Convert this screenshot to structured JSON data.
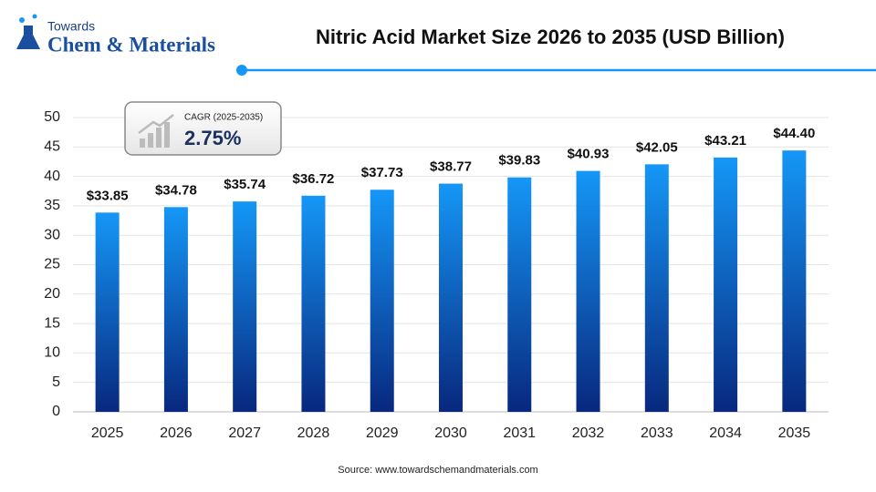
{
  "logo": {
    "top": "Towards",
    "bottom": "Chem & Materials"
  },
  "cagr": {
    "label": "CAGR (2025-2035)",
    "value": "2.75%"
  },
  "source": "Source: www.towardschemandmaterials.com",
  "chart_data": {
    "type": "bar",
    "title": "Nitric Acid Market Size 2026 to 2035 (USD Billion)",
    "categories": [
      "2025",
      "2026",
      "2027",
      "2028",
      "2029",
      "2030",
      "2031",
      "2032",
      "2033",
      "2034",
      "2035"
    ],
    "values": [
      33.85,
      34.78,
      35.74,
      36.72,
      37.73,
      38.77,
      39.83,
      40.93,
      42.05,
      43.21,
      44.4
    ],
    "value_labels": [
      "$33.85",
      "$34.78",
      "$35.74",
      "$36.72",
      "$37.73",
      "$38.77",
      "$39.83",
      "$40.93",
      "$42.05",
      "$43.21",
      "$44.40"
    ],
    "color": [
      "#1597f7",
      "#08287e"
    ],
    "ylim": [
      0,
      50
    ],
    "yticks": [
      0,
      5,
      10,
      15,
      20,
      25,
      30,
      35,
      40,
      45,
      50
    ],
    "grid": true
  }
}
